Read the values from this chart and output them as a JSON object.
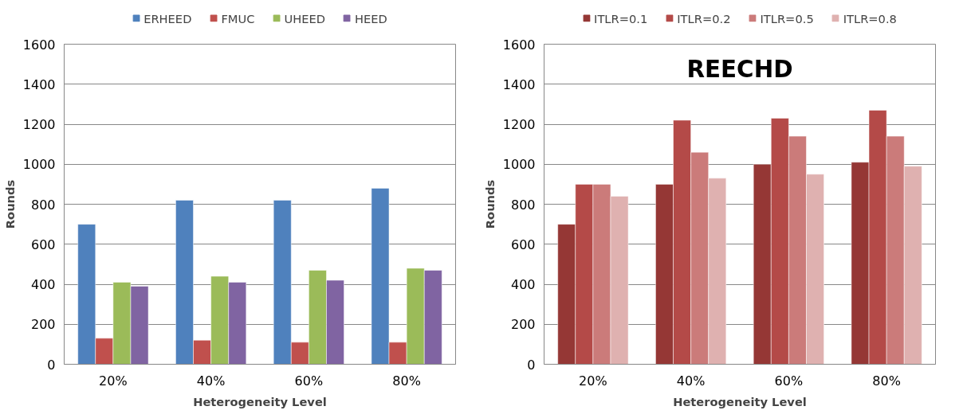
{
  "chart_data": [
    {
      "type": "bar",
      "categories": [
        "20%",
        "40%",
        "60%",
        "80%"
      ],
      "xlabel": "Heterogeneity Level",
      "ylabel": "Rounds",
      "ylim": [
        0,
        1600
      ],
      "yticks": [
        0,
        200,
        400,
        600,
        800,
        1000,
        1200,
        1400,
        1600
      ],
      "grid": "y",
      "legend": "top",
      "series": [
        {
          "name": "ERHEED",
          "color": "#4f81bd",
          "values": [
            700,
            820,
            820,
            880
          ]
        },
        {
          "name": "FMUC",
          "color": "#c0504d",
          "values": [
            130,
            120,
            110,
            110
          ]
        },
        {
          "name": "UHEED",
          "color": "#9bbb59",
          "values": [
            410,
            440,
            470,
            480
          ]
        },
        {
          "name": "HEED",
          "color": "#8064a2",
          "values": [
            390,
            410,
            420,
            470
          ]
        }
      ]
    },
    {
      "type": "bar",
      "title": "REECHD",
      "categories": [
        "20%",
        "40%",
        "60%",
        "80%"
      ],
      "xlabel": "Heterogeneity Level",
      "ylabel": "Rounds",
      "ylim": [
        0,
        1600
      ],
      "yticks": [
        0,
        200,
        400,
        600,
        800,
        1000,
        1200,
        1400,
        1600
      ],
      "grid": "y",
      "legend": "top",
      "series": [
        {
          "name": "ITLR=0.1",
          "color": "#953735",
          "values": [
            700,
            900,
            1000,
            1010
          ]
        },
        {
          "name": "ITLR=0.2",
          "color": "#b44a48",
          "values": [
            900,
            1220,
            1230,
            1270
          ]
        },
        {
          "name": "ITLR=0.5",
          "color": "#cb7b7a",
          "values": [
            900,
            1060,
            1140,
            1140
          ]
        },
        {
          "name": "ITLR=0.8",
          "color": "#dfb1b0",
          "values": [
            840,
            930,
            950,
            990
          ]
        }
      ]
    }
  ]
}
